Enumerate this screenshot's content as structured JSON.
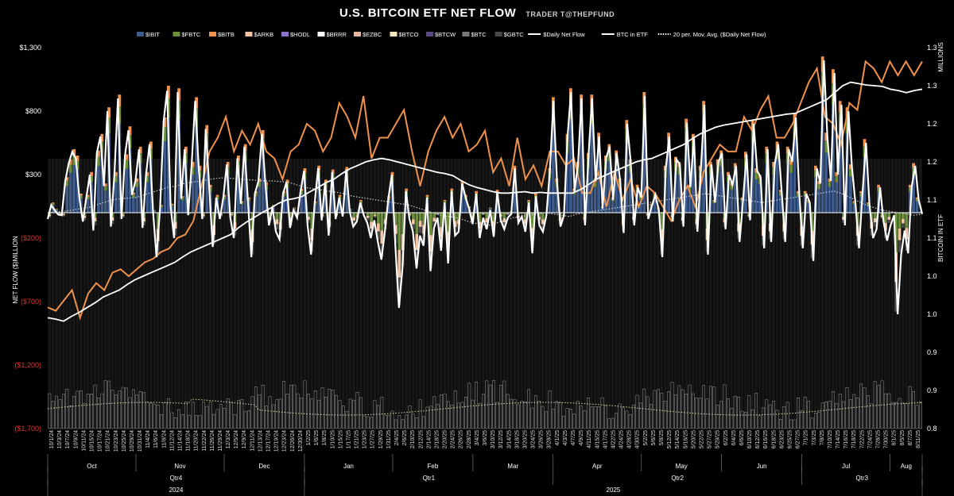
{
  "title": "U.S. BITCOIN ETF NET FLOW",
  "subtitle": "TRADER T@THEPFUND",
  "chart_data": {
    "type": "bar",
    "ylabel_left": "NET FLOW ($)MILLION",
    "ylabel_right": "BITCOIN IN ETF",
    "right_unit": "MILLIONS",
    "left_ticks": [
      {
        "v": 1300,
        "label": "$1,300",
        "neg": false
      },
      {
        "v": 800,
        "label": "$800",
        "neg": false
      },
      {
        "v": 300,
        "label": "$300",
        "neg": false
      },
      {
        "v": -200,
        "label": "($200)",
        "neg": true
      },
      {
        "v": -700,
        "label": "($700)",
        "neg": true
      },
      {
        "v": -1200,
        "label": "($1,200)",
        "neg": true
      },
      {
        "v": -1700,
        "label": "($1,700)",
        "neg": true
      }
    ],
    "ylim_left": [
      -1700,
      1300
    ],
    "right_ticks": [
      "1.3",
      "1.3",
      "1.2",
      "1.2",
      "1.1",
      "1.1",
      "1.0",
      "1.0",
      "0.9",
      "0.9",
      "0.8"
    ],
    "ylim_right": [
      0.8,
      1.35
    ],
    "legend": [
      {
        "name": "$IBIT",
        "type": "bar",
        "color": "#3d5a8a"
      },
      {
        "name": "$FBTC",
        "type": "bar",
        "color": "#6b8f3a"
      },
      {
        "name": "$BITB",
        "type": "bar",
        "color": "#f0914c"
      },
      {
        "name": "$ARKB",
        "type": "bar",
        "color": "#f2c4a4"
      },
      {
        "name": "$HODL",
        "type": "bar",
        "color": "#8b72c8"
      },
      {
        "name": "$BRRR",
        "type": "bar",
        "color": "#ffffff"
      },
      {
        "name": "$EZBC",
        "type": "bar",
        "color": "#e8b59a"
      },
      {
        "name": "$BTCO",
        "type": "bar",
        "color": "#f3e7c0"
      },
      {
        "name": "$BTCW",
        "type": "bar",
        "color": "#5b4a80"
      },
      {
        "name": "$BTC",
        "type": "bar",
        "color": "#7a7a7a"
      },
      {
        "name": "$GBTC",
        "type": "bar",
        "color": "#4a4a4a"
      },
      {
        "name": "$Daily Net Flow",
        "type": "line",
        "color": "#ffffff"
      },
      {
        "name": "BTC in ETF",
        "type": "line",
        "color": "#ffffff"
      },
      {
        "name": "20 per. Mov. Avg. ($Daily Net Flow)",
        "type": "dotted",
        "color": "#ffffff"
      }
    ],
    "x_labels": [
      "10/1/24",
      "10/3/24",
      "10/7/24",
      "10/9/24",
      "10/11/24",
      "10/15/24",
      "10/17/24",
      "10/21/24",
      "10/23/24",
      "10/25/24",
      "10/29/24",
      "10/31/24",
      "11/4/24",
      "11/6/24",
      "11/8/24",
      "11/12/24",
      "11/14/24",
      "11/18/24",
      "11/20/24",
      "11/22/24",
      "11/26/24",
      "11/29/24",
      "12/3/24",
      "12/5/24",
      "12/9/24",
      "12/11/24",
      "12/13/24",
      "12/17/24",
      "12/19/24",
      "12/23/24",
      "12/26/24",
      "12/30/24",
      "1/2/25",
      "1/6/25",
      "1/8/25",
      "1/10/25",
      "1/15/25",
      "1/17/25",
      "1/21/25",
      "1/23/25",
      "1/27/25",
      "1/29/25",
      "1/31/25",
      "2/4/25",
      "2/6/25",
      "2/10/25",
      "2/12/25",
      "2/14/25",
      "2/18/25",
      "2/20/25",
      "2/24/25",
      "2/26/25",
      "2/28/25",
      "3/4/25",
      "3/6/25",
      "3/10/25",
      "3/12/25",
      "3/14/25",
      "3/18/25",
      "3/20/25",
      "3/24/25",
      "3/26/25",
      "3/28/25",
      "4/1/25",
      "4/3/25",
      "4/7/25",
      "4/9/25",
      "4/11/25",
      "4/15/25",
      "4/17/25",
      "4/22/25",
      "4/24/25",
      "4/28/25",
      "4/30/25",
      "5/2/25",
      "5/6/25",
      "5/8/25",
      "5/12/25",
      "5/14/25",
      "5/16/25",
      "5/20/25",
      "5/22/25",
      "5/27/25",
      "5/29/25",
      "6/2/25",
      "6/4/25",
      "6/6/25",
      "6/10/25",
      "6/12/25",
      "6/16/25",
      "6/18/25",
      "6/23/25",
      "6/25/25",
      "6/27/25",
      "7/1/25",
      "7/3/25",
      "7/8/25",
      "7/10/25",
      "7/14/25",
      "7/16/25",
      "7/18/25",
      "7/22/25",
      "7/24/25",
      "7/28/25",
      "7/30/25",
      "8/1/25",
      "8/5/25",
      "8/7/25",
      "8/11/25"
    ],
    "months": [
      {
        "label": "Oct",
        "from": 0,
        "to": 11
      },
      {
        "label": "Nov",
        "from": 11,
        "to": 22
      },
      {
        "label": "Dec",
        "from": 22,
        "to": 32
      },
      {
        "label": "Jan",
        "from": 32,
        "to": 43
      },
      {
        "label": "Feb",
        "from": 43,
        "to": 53
      },
      {
        "label": "Mar",
        "from": 53,
        "to": 63
      },
      {
        "label": "Apr",
        "from": 63,
        "to": 74
      },
      {
        "label": "May",
        "from": 74,
        "to": 84
      },
      {
        "label": "Jun",
        "from": 84,
        "to": 94
      },
      {
        "label": "Jul",
        "from": 94,
        "to": 105
      },
      {
        "label": "Aug",
        "from": 105,
        "to": 109
      }
    ],
    "quarters": [
      {
        "label": "Qtr4",
        "from": 0,
        "to": 32
      },
      {
        "label": "Qtr1",
        "from": 32,
        "to": 63
      },
      {
        "label": "Qtr2",
        "from": 63,
        "to": 94
      },
      {
        "label": "Qtr3",
        "from": 94,
        "to": 109
      }
    ],
    "years": [
      {
        "label": "2024",
        "from": 0,
        "to": 32
      },
      {
        "label": "2025",
        "from": 32,
        "to": 109
      }
    ],
    "daily_net_flow": [
      -50,
      60,
      20,
      -15,
      -20,
      250,
      390,
      480,
      430,
      120,
      -70,
      120,
      300,
      -140,
      470,
      600,
      210,
      800,
      -110,
      300,
      900,
      -50,
      450,
      650,
      140,
      250,
      500,
      -120,
      300,
      540,
      10,
      -350,
      40,
      720,
      960,
      50,
      -200,
      950,
      110,
      500,
      -20,
      380,
      880,
      350,
      -50,
      660,
      200,
      -270,
      120,
      -50,
      120,
      380,
      -40,
      -200,
      430,
      70,
      520,
      100,
      -350,
      150,
      250,
      620,
      220,
      -100,
      40,
      -150,
      -210,
      150,
      240,
      -120,
      20,
      -40,
      170,
      330,
      -100,
      -330,
      70,
      350,
      -60,
      240,
      -180,
      320,
      -50,
      120,
      -30,
      340,
      10,
      -110,
      -70,
      80,
      -20,
      -80,
      -200,
      -60,
      -230,
      -370,
      -150,
      110,
      300,
      -260,
      -750,
      -440,
      170,
      -50,
      -150,
      -440,
      -180,
      -260,
      120,
      -460,
      -120,
      -40,
      -300,
      80,
      -400,
      170,
      -180,
      -150,
      230,
      120,
      30,
      -90,
      150,
      -200,
      -40,
      -130,
      20,
      -190,
      160,
      -60,
      -130,
      -40,
      -10,
      350,
      -80,
      -30,
      -150,
      80,
      -320,
      130,
      -100,
      -150,
      -20,
      330,
      880,
      250,
      -110,
      -20,
      590,
      950,
      170,
      380,
      900,
      -100,
      450,
      900,
      250,
      600,
      30,
      430,
      520,
      100,
      470,
      250,
      -160,
      700,
      400,
      -100,
      200,
      120,
      920,
      -50,
      50,
      140,
      20,
      -350,
      350,
      600,
      -70,
      420,
      380,
      -110,
      710,
      200,
      600,
      -150,
      350,
      850,
      -330,
      380,
      80,
      400,
      470,
      -130,
      300,
      220,
      370,
      -230,
      100,
      460,
      -60,
      700,
      330,
      280,
      -280,
      500,
      -230,
      380,
      540,
      160,
      -230,
      500,
      400,
      750,
      150,
      -280,
      150,
      80,
      -380,
      350,
      230,
      1200,
      600,
      250,
      1100,
      300,
      850,
      -100,
      800,
      360,
      70,
      -280,
      150,
      550,
      60,
      -200,
      -130,
      200,
      -70,
      -220,
      -100,
      -20,
      -800,
      -330,
      -140,
      -320,
      200,
      370,
      100,
      -10
    ],
    "btc_in_etf": [
      0.96,
      0.958,
      0.955,
      0.962,
      0.968,
      0.975,
      0.982,
      0.99,
      0.995,
      1.0,
      1.008,
      1.015,
      1.02,
      1.025,
      1.03,
      1.035,
      1.04,
      1.048,
      1.055,
      1.06,
      1.065,
      1.07,
      1.075,
      1.08,
      1.09,
      1.098,
      1.105,
      1.112,
      1.118,
      1.125,
      1.13,
      1.132,
      1.135,
      1.142,
      1.148,
      1.155,
      1.16,
      1.168,
      1.175,
      1.18,
      1.185,
      1.188,
      1.19,
      1.188,
      1.185,
      1.182,
      1.179,
      1.176,
      1.173,
      1.17,
      1.168,
      1.165,
      1.158,
      1.152,
      1.148,
      1.145,
      1.142,
      1.14,
      1.14,
      1.141,
      1.142,
      1.14,
      1.141,
      1.14,
      1.14,
      1.14,
      1.14,
      1.145,
      1.152,
      1.16,
      1.165,
      1.17,
      1.175,
      1.18,
      1.185,
      1.188,
      1.19,
      1.195,
      1.2,
      1.205,
      1.21,
      1.218,
      1.225,
      1.23,
      1.235,
      1.238,
      1.24,
      1.242,
      1.244,
      1.246,
      1.248,
      1.25,
      1.252,
      1.254,
      1.255,
      1.26,
      1.265,
      1.27,
      1.275,
      1.285,
      1.295,
      1.3,
      1.298,
      1.296,
      1.295,
      1.294,
      1.29,
      1.288,
      1.285,
      1.288,
      1.29
    ],
    "bitb_line": [
      0.975,
      0.97,
      0.985,
      1.0,
      0.96,
      0.995,
      1.01,
      1.0,
      1.025,
      1.03,
      1.02,
      1.03,
      1.04,
      1.045,
      1.055,
      1.06,
      1.075,
      1.08,
      1.1,
      1.15,
      1.2,
      1.22,
      1.25,
      1.2,
      1.23,
      1.21,
      1.24,
      1.2,
      1.19,
      1.16,
      1.2,
      1.21,
      1.24,
      1.23,
      1.2,
      1.22,
      1.27,
      1.25,
      1.22,
      1.28,
      1.19,
      1.22,
      1.22,
      1.24,
      1.26,
      1.2,
      1.15,
      1.2,
      1.23,
      1.25,
      1.22,
      1.24,
      1.2,
      1.21,
      1.23,
      1.17,
      1.19,
      1.15,
      1.22,
      1.16,
      1.18,
      1.15,
      1.2,
      1.2,
      1.18,
      1.19,
      1.14,
      1.14,
      1.17,
      1.12,
      1.17,
      1.13,
      1.16,
      1.12,
      1.15,
      1.14,
      1.12,
      1.1,
      1.13,
      1.15,
      1.12,
      1.17,
      1.19,
      1.21,
      1.2,
      1.2,
      1.25,
      1.23,
      1.26,
      1.28,
      1.22,
      1.22,
      1.24,
      1.27,
      1.3,
      1.32,
      1.25,
      1.24,
      1.21,
      1.27,
      1.26,
      1.33,
      1.32,
      1.3,
      1.33,
      1.31,
      1.33,
      1.31,
      1.33
    ],
    "ma20": [
      0,
      5,
      10,
      20,
      30,
      40,
      60,
      80,
      100,
      110,
      115,
      120,
      140,
      160,
      180,
      200,
      210,
      230,
      240,
      250,
      260,
      270,
      275,
      270,
      265,
      260,
      255,
      250,
      250,
      245,
      240,
      220,
      200,
      190,
      180,
      170,
      160,
      150,
      130,
      120,
      110,
      100,
      90,
      80,
      70,
      60,
      40,
      20,
      0,
      -20,
      -30,
      -40,
      -60,
      -80,
      -90,
      -100,
      -80,
      -60,
      -40,
      -30,
      -20,
      -10,
      0,
      -10,
      -20,
      -30,
      -10,
      0,
      10,
      20,
      30,
      40,
      50,
      60,
      70,
      80,
      90,
      100,
      110,
      120,
      130,
      140,
      150,
      140,
      130,
      120,
      110,
      100,
      90,
      80,
      90,
      100,
      110,
      120,
      130,
      140,
      150,
      160,
      170,
      150,
      120,
      90,
      60,
      40,
      20,
      10,
      0,
      -10,
      -20,
      -10
    ],
    "bar_totals": [
      -40,
      80,
      30,
      -20,
      -30,
      280,
      420,
      500,
      450,
      150,
      -60,
      140,
      320,
      -100,
      490,
      620,
      230,
      830,
      -90,
      320,
      930,
      -40,
      460,
      680,
      160,
      270,
      520,
      -100,
      320,
      560,
      20,
      -320,
      60,
      750,
      1000,
      70,
      -180,
      980,
      130,
      520,
      -10,
      400,
      910,
      370,
      -40,
      690,
      220,
      -250,
      140,
      -30,
      140,
      400,
      -30,
      -180,
      450,
      90,
      540,
      120,
      -330,
      170,
      270,
      650,
      240,
      -80,
      60,
      -130,
      -190,
      170,
      260,
      -100,
      40,
      -20,
      190,
      350,
      -80,
      -310,
      90,
      370,
      -40,
      260,
      -160,
      340,
      -30,
      140,
      -10,
      360,
      30,
      -90,
      -50,
      100,
      0,
      -60,
      -180,
      -40,
      -210,
      -350,
      -130,
      130,
      320,
      -240,
      -730,
      -420,
      190,
      -30,
      -130,
      -420,
      -160,
      -240,
      140,
      -440,
      -100,
      -20,
      -280,
      100,
      -380,
      190,
      -160,
      -130,
      250,
      140,
      50,
      -70,
      170,
      -180,
      -20,
      -110,
      40,
      -170,
      180,
      -40,
      -110,
      -20,
      10,
      370,
      -60,
      -10,
      -130,
      100,
      -300,
      150,
      -80,
      -130,
      0,
      350,
      910,
      270,
      -90,
      0,
      620,
      980,
      190,
      400,
      930,
      -80,
      470,
      930,
      270,
      630,
      50,
      450,
      540,
      120,
      490,
      270,
      -140,
      730,
      420,
      -80,
      220,
      140,
      950,
      -30,
      70,
      160,
      40,
      -330,
      370,
      630,
      -50,
      440,
      400,
      -90,
      740,
      220,
      620,
      -130,
      370,
      880,
      -310,
      400,
      100,
      420,
      490,
      -110,
      320,
      240,
      390,
      -210,
      120,
      480,
      -40,
      730,
      350,
      300,
      -260,
      520,
      -210,
      400,
      560,
      180,
      -210,
      520,
      420,
      780,
      170,
      -260,
      170,
      100,
      -360,
      370,
      250,
      1230,
      630,
      270,
      1130,
      320,
      880,
      -80,
      830,
      380,
      90,
      -260,
      170,
      580,
      80,
      -180,
      -110,
      220,
      -50,
      -200,
      -80,
      0,
      -780,
      -310,
      -120,
      -300,
      220,
      390,
      120,
      10
    ]
  }
}
